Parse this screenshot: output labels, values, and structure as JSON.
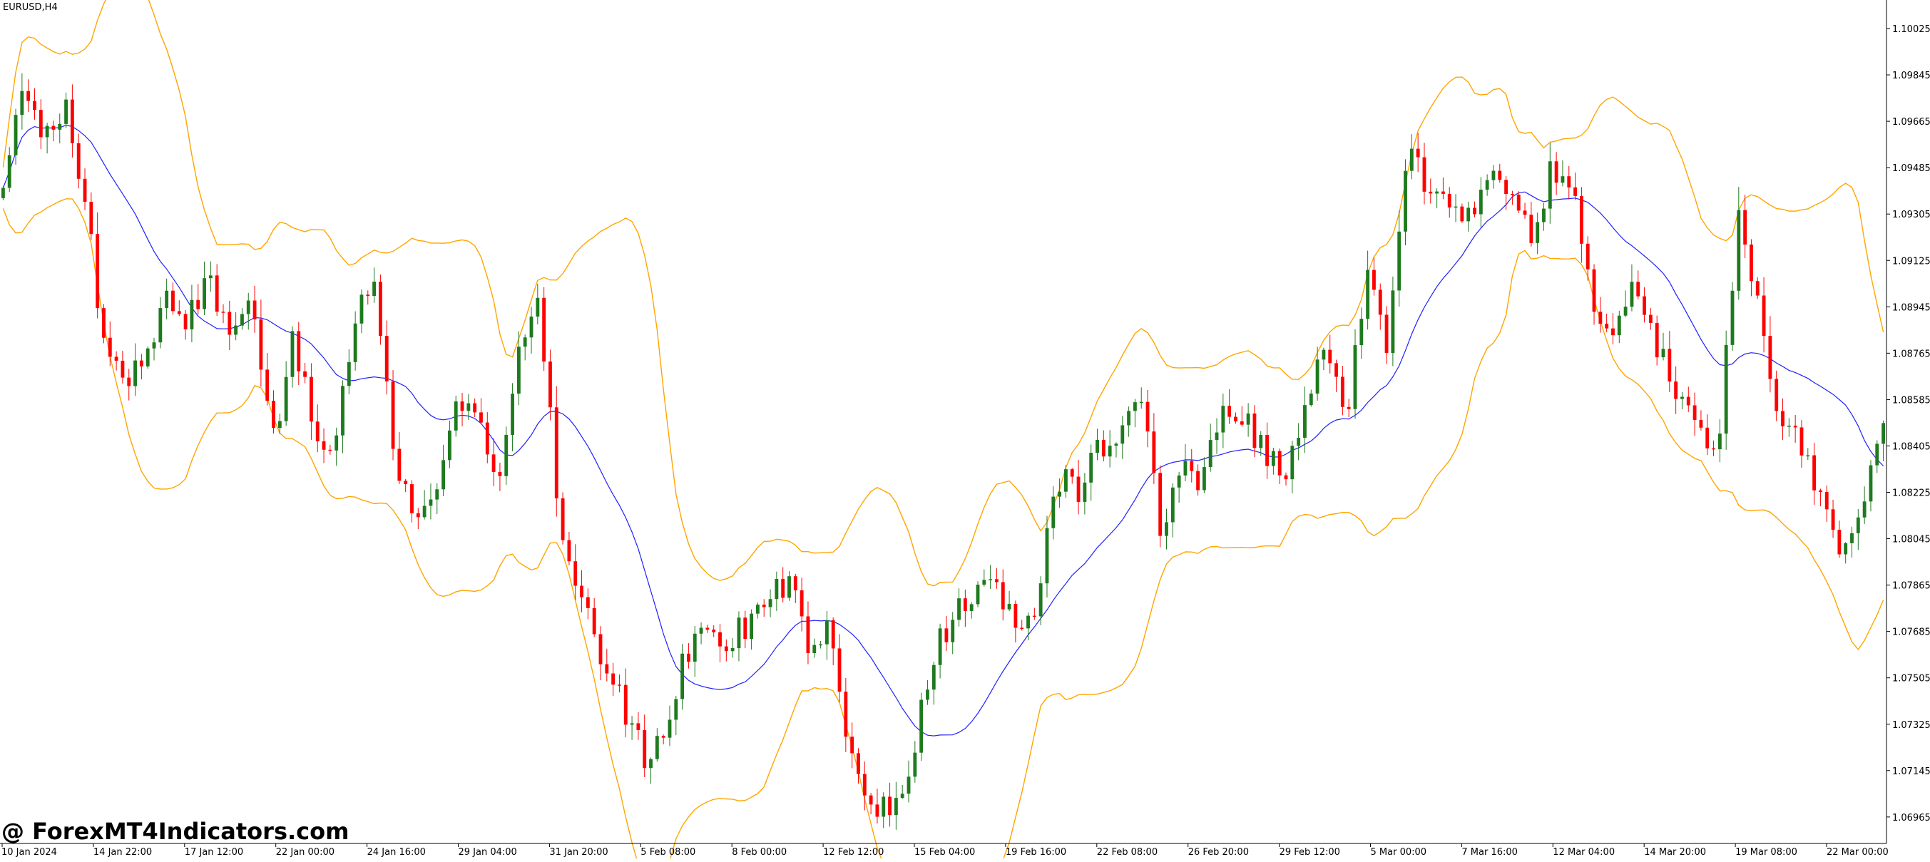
{
  "window": {
    "symbol_label": "EURUSD,H4"
  },
  "watermark": "@ ForexMT4Indicators.com",
  "colors": {
    "bull": "#1e7a1e",
    "bear": "#ff0000",
    "band": "#ffa500",
    "middle": "#2020ff",
    "axis": "#000000",
    "background": "#ffffff"
  },
  "chart_data": {
    "type": "candlestick",
    "title": "EURUSD,H4",
    "y_ticks": [
      "1.10025",
      "1.09845",
      "1.09665",
      "1.09485",
      "1.09305",
      "1.09125",
      "1.08945",
      "1.08765",
      "1.08585",
      "1.08405",
      "1.08225",
      "1.08045",
      "1.07865",
      "1.07685",
      "1.07505",
      "1.07325",
      "1.07145",
      "1.06965"
    ],
    "x_ticks": [
      "10 Jan 2024",
      "14 Jan 22:00",
      "17 Jan 12:00",
      "22 Jan 00:00",
      "24 Jan 16:00",
      "29 Jan 04:00",
      "31 Jan 20:00",
      "5 Feb 08:00",
      "8 Feb 00:00",
      "12 Feb 12:00",
      "15 Feb 04:00",
      "19 Feb 16:00",
      "22 Feb 08:00",
      "26 Feb 20:00",
      "29 Feb 12:00",
      "5 Mar 00:00",
      "7 Mar 16:00",
      "12 Mar 04:00",
      "14 Mar 20:00",
      "19 Mar 08:00",
      "22 Mar 00:00"
    ],
    "ylim": [
      1.069,
      1.1014
    ],
    "indicator": "Bollinger Bands",
    "close_anchors": [
      1.094,
      1.0985,
      1.096,
      1.0975,
      1.0935,
      1.087,
      1.0865,
      1.088,
      1.09,
      1.089,
      1.0905,
      1.088,
      1.09,
      1.084,
      1.088,
      1.085,
      1.084,
      1.089,
      1.09,
      1.083,
      1.081,
      1.082,
      1.086,
      1.085,
      1.083,
      1.088,
      1.0895,
      1.08,
      1.078,
      1.076,
      1.074,
      1.072,
      1.073,
      1.076,
      1.077,
      1.0765,
      1.077,
      1.078,
      1.079,
      1.076,
      1.077,
      1.072,
      1.07,
      1.07,
      1.072,
      1.076,
      1.0775,
      1.078,
      1.079,
      1.077,
      1.078,
      1.083,
      1.082,
      1.084,
      1.084,
      1.086,
      1.081,
      1.083,
      1.0825,
      1.086,
      1.085,
      1.084,
      1.083,
      1.0855,
      1.088,
      1.085,
      1.091,
      1.088,
      1.096,
      1.094,
      1.0935,
      1.093,
      1.095,
      1.094,
      1.092,
      1.095,
      1.094,
      1.089,
      1.088,
      1.0905,
      1.088,
      1.086,
      1.085,
      1.084,
      1.0935,
      1.089,
      1.085,
      1.084,
      1.082,
      1.08,
      1.082,
      1.085
    ]
  }
}
